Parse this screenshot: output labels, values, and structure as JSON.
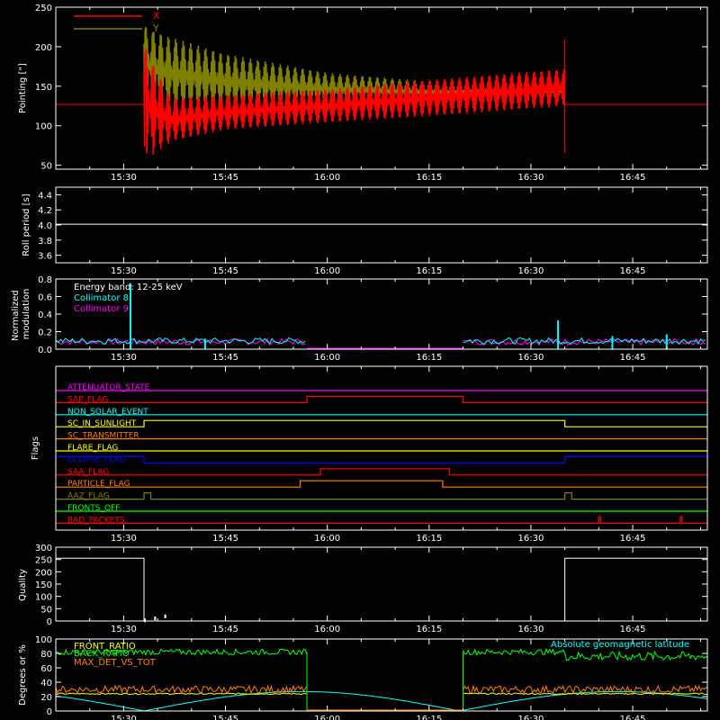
{
  "chart_data": [
    {
      "id": "pointing",
      "type": "line",
      "ylabel": "Pointing [\"]",
      "ylim": [
        45,
        250
      ],
      "yticks": [
        50,
        100,
        150,
        200,
        250
      ],
      "xlim": [
        "15:20",
        "16:56"
      ],
      "xticks": [
        "15:30",
        "15:45",
        "16:00",
        "16:15",
        "16:30",
        "16:45"
      ],
      "legend_position": "top-left",
      "series": [
        {
          "name": "X",
          "color": "#ff0000",
          "envelope": {
            "start": "15:33",
            "end": "16:35",
            "upper": [
              [
                0,
                200
              ],
              [
                4,
                135
              ],
              [
                12,
                139
              ],
              [
                27,
                146
              ],
              [
                42,
                158
              ],
              [
                62,
                172
              ]
            ],
            "lower": [
              [
                0,
                55
              ],
              [
                4,
                80
              ],
              [
                12,
                95
              ],
              [
                27,
                104
              ],
              [
                42,
                112
              ],
              [
                62,
                125
              ]
            ],
            "outside_value": 127
          }
        },
        {
          "name": "Y",
          "color": "#808000",
          "envelope": {
            "start": "15:33",
            "end": "16:35",
            "upper": [
              [
                0,
                225
              ],
              [
                4,
                212
              ],
              [
                12,
                191
              ],
              [
                27,
                167
              ],
              [
                42,
                156
              ],
              [
                62,
                165
              ]
            ],
            "lower": [
              [
                0,
                130
              ],
              [
                4,
                120
              ],
              [
                12,
                121
              ],
              [
                27,
                126
              ],
              [
                42,
                128
              ],
              [
                62,
                125
              ]
            ],
            "outside_value": 127
          }
        }
      ]
    },
    {
      "id": "roll",
      "type": "line",
      "ylabel": "Roll period [s]",
      "ylim": [
        3.5,
        4.5
      ],
      "yticks": [
        3.6,
        3.8,
        4.0,
        4.2,
        4.4
      ],
      "xticks": [
        "15:30",
        "15:45",
        "16:00",
        "16:15",
        "16:30",
        "16:45"
      ],
      "series": [
        {
          "color": "#ffffff",
          "x": [
            "15:20",
            "16:56"
          ],
          "values": [
            4.01,
            4.01
          ]
        }
      ]
    },
    {
      "id": "modulation",
      "type": "line",
      "ylabel": "Normalized modulation",
      "ylim": [
        0,
        0.8
      ],
      "yticks": [
        0.0,
        0.2,
        0.4,
        0.6,
        0.8
      ],
      "xticks": [
        "15:30",
        "15:45",
        "16:00",
        "16:15",
        "16:30",
        "16:45"
      ],
      "annotation": "Energy band: 12-25 keV",
      "legend_position": "top-left",
      "series": [
        {
          "name": "Collimator 8",
          "color": "#00ffff",
          "segments": [
            [
              "15:20",
              "15:57"
            ],
            [
              "16:20",
              "16:56"
            ]
          ],
          "level": 0.06,
          "spikes": [
            [
              "15:31",
              0.75
            ],
            [
              "15:42",
              0.12
            ],
            [
              "16:34",
              0.33
            ],
            [
              "16:42",
              0.15
            ],
            [
              "16:50",
              0.17
            ]
          ]
        },
        {
          "name": "Collimator 9",
          "color": "#ff00ff",
          "segments": [
            [
              "15:20",
              "15:57"
            ],
            [
              "16:20",
              "16:56"
            ]
          ],
          "level": 0.05,
          "spikes": []
        }
      ]
    },
    {
      "id": "flags",
      "type": "line",
      "ylabel": "Flags",
      "xticks": [
        "15:30",
        "15:45",
        "16:00",
        "16:15",
        "16:30",
        "16:45"
      ],
      "series": [
        {
          "name": "ATTENUATOR_STATE",
          "color": "#ff00ff",
          "on": []
        },
        {
          "name": "SAP_FLAG",
          "color": "#ff0000",
          "on": [
            [
              "15:57",
              "16:20"
            ]
          ]
        },
        {
          "name": "NON_SOLAR_EVENT",
          "color": "#00ffff",
          "on": []
        },
        {
          "name": "SC_IN_SUNLIGHT",
          "color": "#ffff00",
          "on": [
            [
              "15:33",
              "16:35"
            ]
          ]
        },
        {
          "name": "SC_TRANSMITTER",
          "color": "#ff8000",
          "on": []
        },
        {
          "name": "FLARE_FLAG",
          "color": "#ffff00",
          "on": []
        },
        {
          "name": "ECLIPSE_FLAG",
          "color": "#0000ff",
          "on": [
            [
              "15:20",
              "15:33"
            ],
            [
              "16:35",
              "16:56"
            ]
          ]
        },
        {
          "name": "SAA_FLAG",
          "color": "#ff0000",
          "on": [
            [
              "15:59",
              "16:18"
            ]
          ]
        },
        {
          "name": "PARTICLE_FLAG",
          "color": "#ff8000",
          "on": [
            [
              "15:56",
              "16:17"
            ]
          ]
        },
        {
          "name": "AAZ_FLAG",
          "color": "#808000",
          "on": [
            [
              "15:33",
              "15:34"
            ],
            [
              "16:35",
              "16:36"
            ]
          ]
        },
        {
          "name": "FRONTS_OFF",
          "color": "#00ff00",
          "on": []
        },
        {
          "name": "BAD_PACKETS",
          "color": "#ff0000",
          "on": [
            [
              "16:40",
              "16:40"
            ],
            [
              "16:52",
              "16:52"
            ]
          ]
        }
      ]
    },
    {
      "id": "quality",
      "type": "line",
      "ylabel": "Quality",
      "ylim": [
        0,
        300
      ],
      "yticks": [
        0,
        50,
        100,
        150,
        200,
        250,
        300
      ],
      "xticks": [
        "15:30",
        "15:45",
        "16:00",
        "16:15",
        "16:30",
        "16:45"
      ],
      "series": [
        {
          "color": "#ffffff",
          "x": [
            "15:20",
            "15:33",
            "15:33",
            "16:35",
            "16:35",
            "16:56"
          ],
          "values": [
            255,
            255,
            0,
            0,
            255,
            255
          ]
        }
      ]
    },
    {
      "id": "geo",
      "type": "line",
      "ylabel": "Degrees or %",
      "ylim": [
        0,
        100
      ],
      "yticks": [
        0,
        20,
        40,
        60,
        80,
        100
      ],
      "xticks": [
        "15:30",
        "15:45",
        "16:00",
        "16:15",
        "16:30",
        "16:45"
      ],
      "legend_position": "top-left",
      "annotation": "Absolute geomagnetic latitude",
      "series": [
        {
          "name": "FRONT_RATIO",
          "color": "#ffff00",
          "level": 24
        },
        {
          "name": "BACK_RATIO",
          "color": "#00ff00",
          "level": 82
        },
        {
          "name": "MAX_DET_VS_TOT",
          "color": "#ff8000",
          "level": 30
        },
        {
          "name": "Absolute geomagnetic latitude",
          "color": "#00ffff"
        }
      ]
    }
  ]
}
